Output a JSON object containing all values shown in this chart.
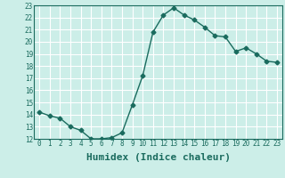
{
  "x": [
    0,
    1,
    2,
    3,
    4,
    5,
    6,
    7,
    8,
    9,
    10,
    11,
    12,
    13,
    14,
    15,
    16,
    17,
    18,
    19,
    20,
    21,
    22,
    23
  ],
  "y": [
    14.2,
    13.9,
    13.7,
    13.0,
    12.7,
    12.0,
    12.0,
    12.1,
    12.5,
    14.8,
    17.2,
    20.8,
    22.2,
    22.8,
    22.2,
    21.8,
    21.2,
    20.5,
    20.4,
    19.2,
    19.5,
    19.0,
    18.4,
    18.3
  ],
  "line_color": "#1a6b5e",
  "marker": "D",
  "marker_size": 2.5,
  "bg_color": "#cceee8",
  "grid_color": "#ffffff",
  "xlabel": "Humidex (Indice chaleur)",
  "ylim": [
    12,
    23
  ],
  "xlim": [
    -0.5,
    23.5
  ],
  "yticks": [
    12,
    13,
    14,
    15,
    16,
    17,
    18,
    19,
    20,
    21,
    22,
    23
  ],
  "xticks": [
    0,
    1,
    2,
    3,
    4,
    5,
    6,
    7,
    8,
    9,
    10,
    11,
    12,
    13,
    14,
    15,
    16,
    17,
    18,
    19,
    20,
    21,
    22,
    23
  ],
  "tick_label_fontsize": 5.5,
  "xlabel_fontsize": 8,
  "line_width": 1.0
}
